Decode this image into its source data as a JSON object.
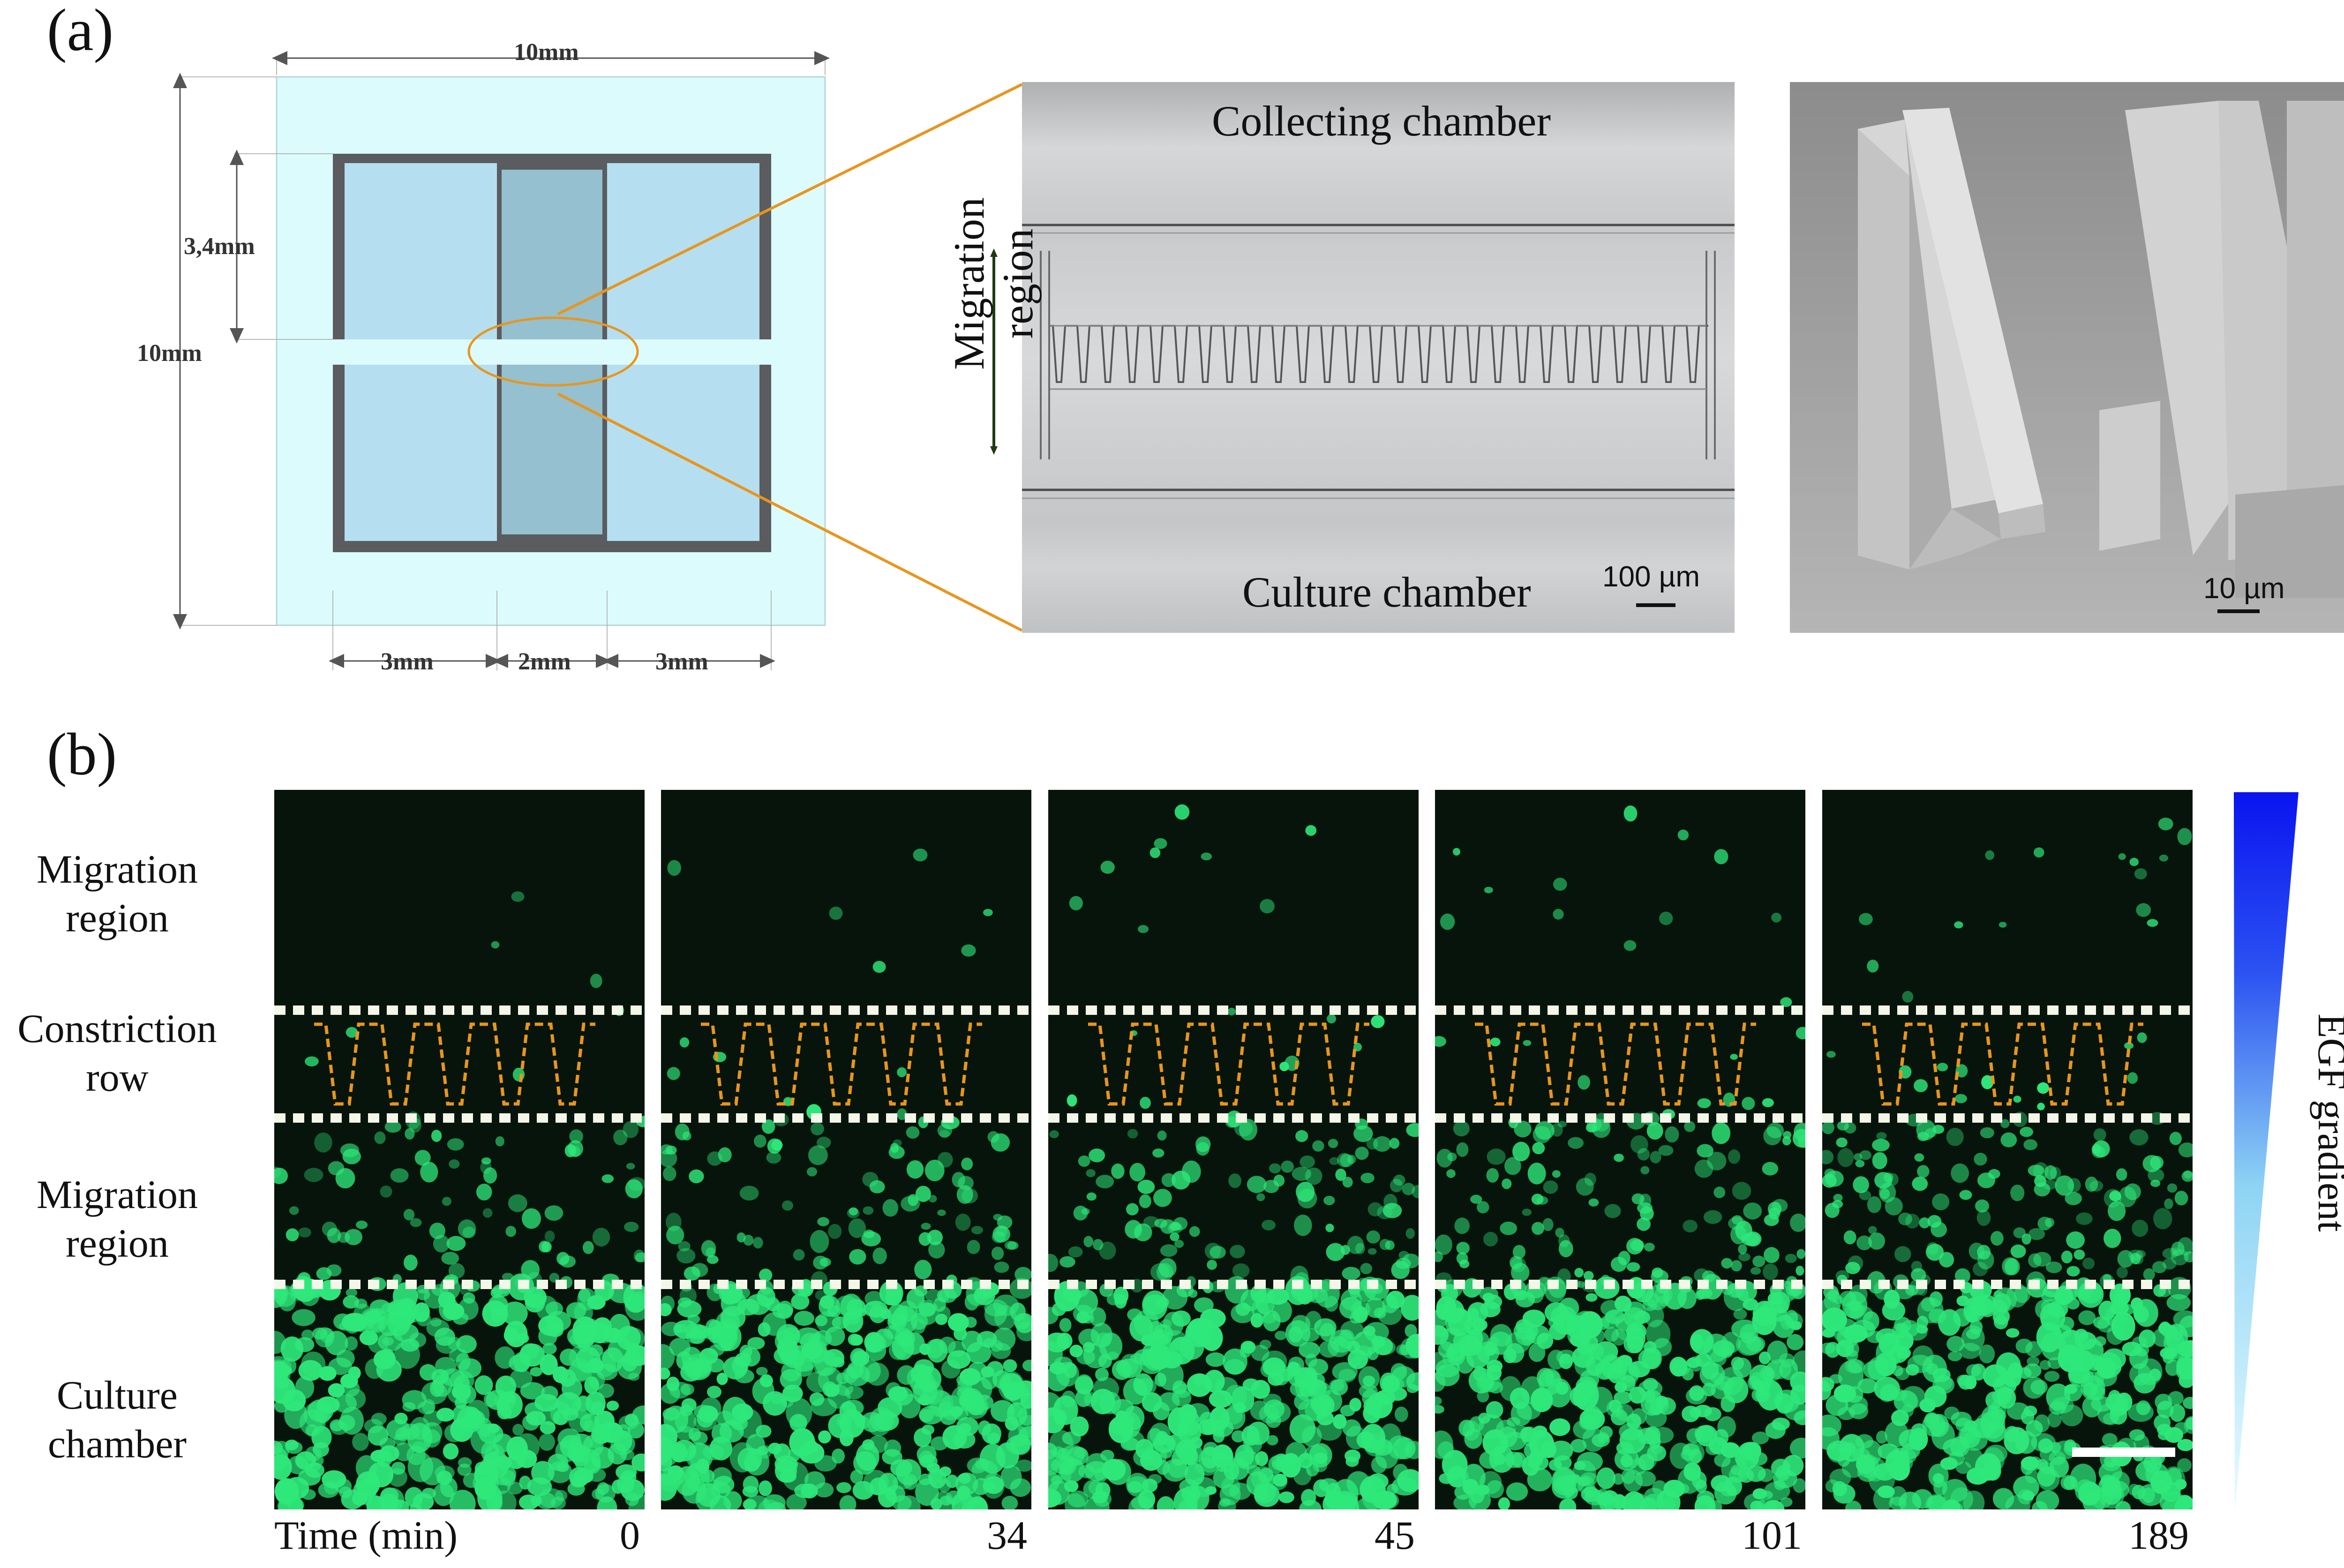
{
  "figure": {
    "panel_a": {
      "letter": "(a)",
      "schematic": {
        "width_label": "10mm",
        "height_label": "10mm",
        "chamber_height_label": "3,4mm",
        "bottom_labels": [
          "3mm",
          "2mm",
          "3mm"
        ],
        "colors": {
          "substrate": "#dcfbfd",
          "frame": "#5a5c60",
          "chamber": "#b5dff0",
          "center": "#94c0cf",
          "zoom_line": "#e8951e"
        }
      },
      "micrograph": {
        "top_label": "Collecting chamber",
        "bottom_label": "Culture chamber",
        "side_label_line1": "Migration",
        "side_label_line2": "region",
        "scale_bar": "100 µm"
      },
      "sem": {
        "scale_bar": "10 µm"
      }
    },
    "panel_b": {
      "letter": "(b)",
      "row_labels": [
        {
          "line1": "Migration",
          "line2": "region"
        },
        {
          "line1": "Constriction",
          "line2": "row"
        },
        {
          "line1": "Migration",
          "line2": "region"
        },
        {
          "line1": "Culture",
          "line2": "chamber"
        }
      ],
      "time_label": "Time (min)",
      "time_points": [
        "0",
        "34",
        "45",
        "101",
        "189"
      ],
      "gradient_label": "EGF gradient",
      "colors": {
        "cell": "#2ee87a",
        "background": "#07140b",
        "dashed_line": "#f4f7e8",
        "constriction_outline": "#e8951e",
        "gradient_top": "#0a14f0",
        "gradient_bottom": "#e8fcff"
      }
    }
  }
}
